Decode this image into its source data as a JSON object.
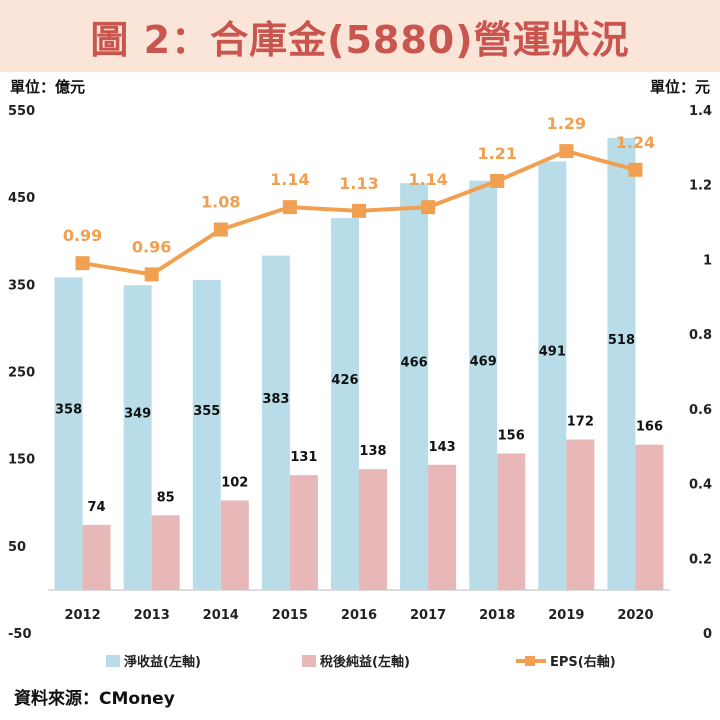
{
  "title": "圖 2：合庫金(5880)營運狀況",
  "units": {
    "left": "單位：億元",
    "right": "單位：元"
  },
  "source": "資料來源：CMoney",
  "colors": {
    "net_revenue": "#b8dde8",
    "net_income": "#e8b7b7",
    "eps": "#f0a050",
    "title_bg": "#fbe4d8",
    "title_text": "#c9564e"
  },
  "chart_data": {
    "type": "bar+line",
    "title": "圖 2：合庫金(5880)營運狀況",
    "categories": [
      "2012",
      "2013",
      "2014",
      "2015",
      "2016",
      "2017",
      "2018",
      "2019",
      "2020"
    ],
    "series": [
      {
        "name": "淨收益(左軸)",
        "type": "bar",
        "axis": "left",
        "values": [
          358,
          349,
          355,
          383,
          426,
          466,
          469,
          491,
          518
        ]
      },
      {
        "name": "稅後純益(左軸)",
        "type": "bar",
        "axis": "left",
        "values": [
          74,
          85,
          102,
          131,
          138,
          143,
          156,
          172,
          166
        ]
      },
      {
        "name": "EPS(右軸)",
        "type": "line",
        "axis": "right",
        "values": [
          0.99,
          0.96,
          1.08,
          1.14,
          1.13,
          1.14,
          1.21,
          1.29,
          1.24
        ]
      }
    ],
    "left_axis": {
      "label": "單位：億元",
      "ylim": [
        -50,
        550
      ],
      "ticks": [
        "-50",
        "50",
        "150",
        "250",
        "350",
        "450",
        "550"
      ]
    },
    "right_axis": {
      "label": "單位：元",
      "ylim": [
        0,
        1.4
      ],
      "ticks": [
        "0",
        "0.2",
        "0.4",
        "0.6",
        "0.8",
        "1",
        "1.2",
        "1.4"
      ]
    },
    "legend": [
      "淨收益(左軸)",
      "稅後純益(左軸)",
      "EPS(右軸)"
    ],
    "legend_position": "bottom"
  }
}
